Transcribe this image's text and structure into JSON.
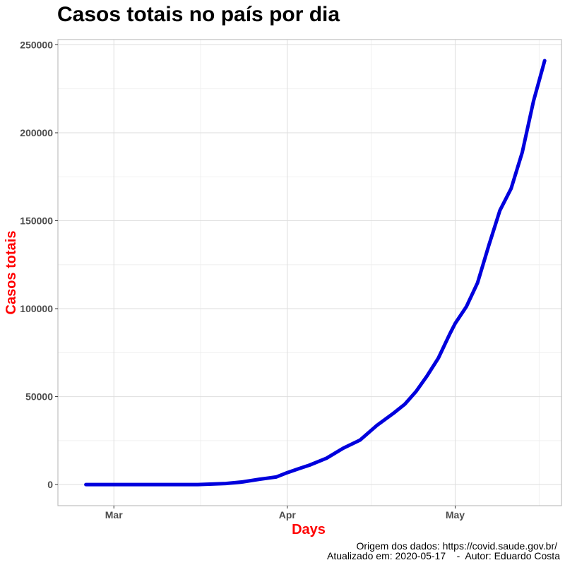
{
  "chart_data": {
    "type": "line",
    "title": "Casos totais no país por dia",
    "xlabel": "Days",
    "ylabel": "Casos totais",
    "xlabel_color": "#ff0000",
    "ylabel_color": "#ff0000",
    "line_color": "#0000dd",
    "xlim": [
      "2020-02-20",
      "2020-05-20"
    ],
    "ylim": [
      -12000,
      253000
    ],
    "x_ticks": [
      {
        "date": "2020-03-01",
        "label": "Mar"
      },
      {
        "date": "2020-04-01",
        "label": "Apr"
      },
      {
        "date": "2020-05-01",
        "label": "May"
      }
    ],
    "y_ticks": [
      0,
      50000,
      100000,
      150000,
      200000,
      250000
    ],
    "y_tick_labels": [
      "0",
      "50000",
      "100000",
      "150000",
      "200000",
      "250000"
    ],
    "grid": true,
    "panel_border": true,
    "series": [
      {
        "x": [
          "2020-02-25",
          "2020-03-01",
          "2020-03-06",
          "2020-03-11",
          "2020-03-16",
          "2020-03-21",
          "2020-03-24",
          "2020-03-27",
          "2020-03-30",
          "2020-04-01",
          "2020-04-03",
          "2020-04-05",
          "2020-04-08",
          "2020-04-11",
          "2020-04-14",
          "2020-04-17",
          "2020-04-20",
          "2020-04-22",
          "2020-04-24",
          "2020-04-26",
          "2020-04-28",
          "2020-04-30",
          "2020-05-01",
          "2020-05-03",
          "2020-05-05",
          "2020-05-07",
          "2020-05-09",
          "2020-05-11",
          "2020-05-13",
          "2020-05-15",
          "2020-05-17"
        ],
        "y": [
          0,
          0,
          0,
          0,
          0,
          600,
          1500,
          3000,
          4300,
          6800,
          9000,
          11100,
          15000,
          20700,
          25300,
          33600,
          40600,
          45700,
          52900,
          61900,
          71900,
          85400,
          91600,
          101100,
          114700,
          135800,
          155900,
          168300,
          188900,
          218000,
          241000
        ]
      }
    ],
    "caption": [
      "Origem dos dados: https://covid.saude.gov.br/",
      "Atualizado em: 2020-05-17    -  Autor: Eduardo Costa"
    ]
  }
}
